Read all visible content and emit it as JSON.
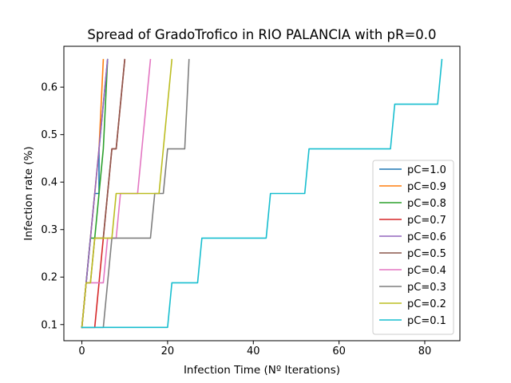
{
  "chart_data": {
    "type": "line",
    "title": "Spread of GradoTrofico in RIO PALANCIA with pR=0.0",
    "xlabel": "Infection Time (Nº Iterations)",
    "ylabel": "Infection rate (%)",
    "xlim": [
      -4.2,
      88.2
    ],
    "ylim": [
      0.066,
      0.686
    ],
    "xticks": [
      0,
      20,
      40,
      60,
      80
    ],
    "yticks": [
      0.1,
      0.2,
      0.3,
      0.4,
      0.5,
      0.6
    ],
    "xtick_labels": [
      "0",
      "20",
      "40",
      "60",
      "80"
    ],
    "ytick_labels": [
      "0.1",
      "0.2",
      "0.3",
      "0.4",
      "0.5",
      "0.6"
    ],
    "grid": false,
    "legend_position": "lower right",
    "series": [
      {
        "name": "pC=1.0",
        "color": "#1f77b4",
        "points": [
          [
            0,
            0.094
          ],
          [
            1,
            0.188
          ],
          [
            2,
            0.282
          ],
          [
            3,
            0.376
          ],
          [
            4,
            0.376
          ],
          [
            4,
            0.47
          ],
          [
            5,
            0.564
          ],
          [
            6,
            0.658
          ]
        ]
      },
      {
        "name": "pC=0.9",
        "color": "#ff7f0e",
        "points": [
          [
            0,
            0.094
          ],
          [
            1,
            0.188
          ],
          [
            2,
            0.282
          ],
          [
            3,
            0.376
          ],
          [
            4,
            0.47
          ],
          [
            5,
            0.658
          ]
        ]
      },
      {
        "name": "pC=0.8",
        "color": "#2ca02c",
        "points": [
          [
            0,
            0.094
          ],
          [
            1,
            0.188
          ],
          [
            2,
            0.282
          ],
          [
            3,
            0.282
          ],
          [
            4,
            0.376
          ],
          [
            5,
            0.47
          ],
          [
            6,
            0.658
          ]
        ]
      },
      {
        "name": "pC=0.7",
        "color": "#d62728",
        "points": [
          [
            0,
            0.094
          ],
          [
            3,
            0.094
          ],
          [
            4,
            0.188
          ],
          [
            5,
            0.282
          ],
          [
            6,
            0.376
          ],
          [
            7,
            0.47
          ],
          [
            8,
            0.47
          ],
          [
            9,
            0.564
          ],
          [
            10,
            0.658
          ]
        ]
      },
      {
        "name": "pC=0.6",
        "color": "#9467bd",
        "points": [
          [
            0,
            0.094
          ],
          [
            1,
            0.188
          ],
          [
            2,
            0.282
          ],
          [
            3,
            0.376
          ],
          [
            4,
            0.47
          ],
          [
            5,
            0.564
          ],
          [
            6,
            0.658
          ]
        ]
      },
      {
        "name": "pC=0.5",
        "color": "#8c564b",
        "points": [
          [
            0,
            0.094
          ],
          [
            1,
            0.188
          ],
          [
            2,
            0.188
          ],
          [
            3,
            0.282
          ],
          [
            5,
            0.282
          ],
          [
            6,
            0.376
          ],
          [
            7,
            0.47
          ],
          [
            8,
            0.47
          ],
          [
            9,
            0.564
          ],
          [
            10,
            0.658
          ]
        ]
      },
      {
        "name": "pC=0.4",
        "color": "#e377c2",
        "points": [
          [
            0,
            0.094
          ],
          [
            1,
            0.188
          ],
          [
            5,
            0.188
          ],
          [
            6,
            0.282
          ],
          [
            8,
            0.282
          ],
          [
            9,
            0.376
          ],
          [
            13,
            0.376
          ],
          [
            14,
            0.47
          ],
          [
            15,
            0.564
          ],
          [
            16,
            0.658
          ]
        ]
      },
      {
        "name": "pC=0.3",
        "color": "#7f7f7f",
        "points": [
          [
            0,
            0.094
          ],
          [
            5,
            0.094
          ],
          [
            6,
            0.188
          ],
          [
            7,
            0.282
          ],
          [
            16,
            0.282
          ],
          [
            17,
            0.376
          ],
          [
            19,
            0.376
          ],
          [
            20,
            0.47
          ],
          [
            24,
            0.47
          ],
          [
            25,
            0.658
          ]
        ]
      },
      {
        "name": "pC=0.2",
        "color": "#bcbd22",
        "points": [
          [
            0,
            0.094
          ],
          [
            1,
            0.188
          ],
          [
            2,
            0.188
          ],
          [
            3,
            0.282
          ],
          [
            7,
            0.282
          ],
          [
            8,
            0.376
          ],
          [
            18,
            0.376
          ],
          [
            19,
            0.47
          ],
          [
            20,
            0.564
          ],
          [
            21,
            0.658
          ]
        ]
      },
      {
        "name": "pC=0.1",
        "color": "#17becf",
        "points": [
          [
            0,
            0.094
          ],
          [
            20,
            0.094
          ],
          [
            21,
            0.188
          ],
          [
            27,
            0.188
          ],
          [
            28,
            0.282
          ],
          [
            43,
            0.282
          ],
          [
            44,
            0.376
          ],
          [
            52,
            0.376
          ],
          [
            53,
            0.47
          ],
          [
            72,
            0.47
          ],
          [
            73,
            0.564
          ],
          [
            83,
            0.564
          ],
          [
            84,
            0.658
          ]
        ]
      }
    ]
  }
}
